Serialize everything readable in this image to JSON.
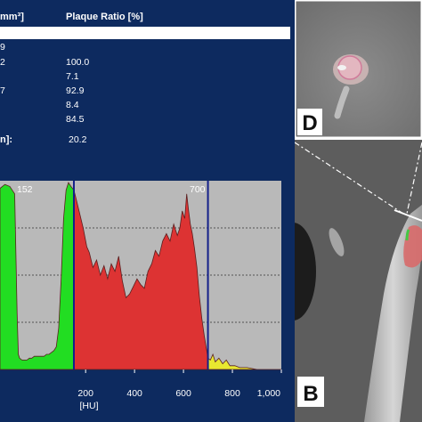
{
  "table": {
    "header_left": "mm³]",
    "header_ratio": "Plaque Ratio [%]",
    "rows": [
      {
        "label": "9",
        "ratio": ""
      },
      {
        "label": "2",
        "ratio": "100.0"
      },
      {
        "label": "",
        "ratio": "7.1"
      },
      {
        "label": "7",
        "ratio": "92.9"
      },
      {
        "label": "",
        "ratio": "8.4"
      },
      {
        "label": "",
        "ratio": "84.5"
      }
    ],
    "summary_label": "n]:",
    "summary_value": "20.2"
  },
  "histogram": {
    "threshold_low_label": "152",
    "threshold_high_label": "700",
    "x_axis_label": "[HU]",
    "x_ticks": [
      "200",
      "400",
      "600",
      "800",
      "1,000"
    ],
    "xlim": [
      -150,
      1000
    ],
    "ylim": [
      0,
      100
    ],
    "thresholds": [
      152,
      700
    ],
    "region_colors": {
      "low": "#22dd22",
      "mid": "#dd3333",
      "high": "#e8e830"
    },
    "background": "#b9b9b9",
    "profile": [
      [
        -150,
        96
      ],
      [
        -130,
        98
      ],
      [
        -110,
        97
      ],
      [
        -90,
        93
      ],
      [
        -80,
        30
      ],
      [
        -75,
        8
      ],
      [
        -70,
        6
      ],
      [
        -60,
        5
      ],
      [
        -50,
        5
      ],
      [
        -40,
        5
      ],
      [
        -30,
        6
      ],
      [
        -20,
        6
      ],
      [
        -10,
        7
      ],
      [
        0,
        7
      ],
      [
        10,
        7
      ],
      [
        20,
        7
      ],
      [
        30,
        7
      ],
      [
        40,
        8
      ],
      [
        50,
        8
      ],
      [
        60,
        9
      ],
      [
        70,
        10
      ],
      [
        80,
        12
      ],
      [
        90,
        22
      ],
      [
        100,
        48
      ],
      [
        110,
        80
      ],
      [
        120,
        95
      ],
      [
        130,
        99
      ],
      [
        140,
        97
      ],
      [
        152,
        95
      ],
      [
        160,
        91
      ],
      [
        175,
        83
      ],
      [
        190,
        75
      ],
      [
        205,
        65
      ],
      [
        215,
        62
      ],
      [
        230,
        54
      ],
      [
        245,
        58
      ],
      [
        260,
        50
      ],
      [
        275,
        55
      ],
      [
        290,
        48
      ],
      [
        305,
        56
      ],
      [
        320,
        52
      ],
      [
        335,
        60
      ],
      [
        350,
        47
      ],
      [
        365,
        38
      ],
      [
        380,
        40
      ],
      [
        395,
        44
      ],
      [
        410,
        48
      ],
      [
        425,
        45
      ],
      [
        440,
        43
      ],
      [
        455,
        52
      ],
      [
        470,
        56
      ],
      [
        485,
        63
      ],
      [
        500,
        60
      ],
      [
        515,
        68
      ],
      [
        530,
        72
      ],
      [
        545,
        68
      ],
      [
        560,
        77
      ],
      [
        575,
        71
      ],
      [
        585,
        75
      ],
      [
        595,
        84
      ],
      [
        605,
        80
      ],
      [
        613,
        93
      ],
      [
        620,
        85
      ],
      [
        628,
        77
      ],
      [
        636,
        72
      ],
      [
        645,
        64
      ],
      [
        655,
        54
      ],
      [
        665,
        39
      ],
      [
        675,
        27
      ],
      [
        685,
        18
      ],
      [
        695,
        10
      ],
      [
        700,
        6
      ],
      [
        710,
        5
      ],
      [
        720,
        8
      ],
      [
        730,
        4
      ],
      [
        745,
        6
      ],
      [
        760,
        3
      ],
      [
        775,
        5
      ],
      [
        790,
        2
      ],
      [
        810,
        2
      ],
      [
        830,
        1
      ],
      [
        860,
        1
      ],
      [
        900,
        0
      ],
      [
        950,
        0
      ],
      [
        1000,
        0
      ]
    ]
  },
  "panel_d": {
    "label": "D"
  },
  "panel_b": {
    "label": "B"
  }
}
